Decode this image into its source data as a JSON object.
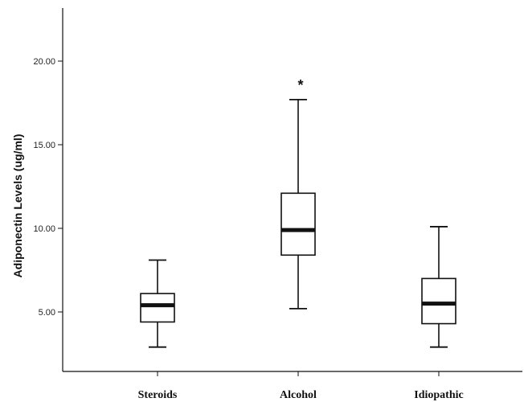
{
  "chart_data": {
    "type": "boxplot",
    "title": "",
    "xlabel": "",
    "ylabel": "Adiponectin Levels (ug/ml)",
    "ylim": [
      1.0,
      24.0
    ],
    "yticks": [
      5,
      10,
      15,
      20
    ],
    "ytick_labels": [
      "5.00",
      "10.00",
      "15.00",
      "20.00"
    ],
    "categories": [
      "Steroids",
      "Alcohol",
      "Idiopathic"
    ],
    "boxes": [
      {
        "category": "Steroids",
        "min": 2.9,
        "q1": 4.4,
        "median": 5.4,
        "q3": 6.1,
        "max": 8.1
      },
      {
        "category": "Alcohol",
        "min": 5.2,
        "q1": 8.4,
        "median": 9.9,
        "q3": 12.1,
        "max": 17.7
      },
      {
        "category": "Idiopathic",
        "min": 2.9,
        "q1": 4.3,
        "median": 5.5,
        "q3": 7.0,
        "max": 10.1
      }
    ],
    "annotations": [
      {
        "category": "Alcohol",
        "text": "*"
      }
    ],
    "grid": false,
    "colors": {
      "stroke": "#111111",
      "box_fill": "#ffffff",
      "median": "#111111"
    }
  }
}
